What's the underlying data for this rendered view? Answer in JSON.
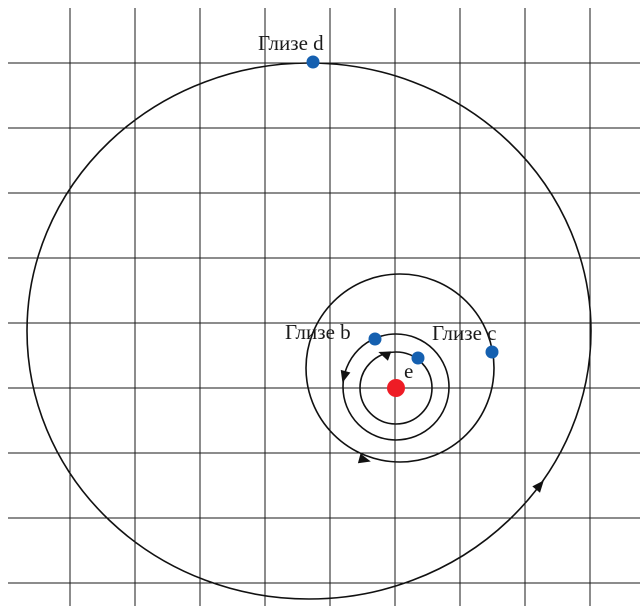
{
  "planets": [
    {
      "id": "d",
      "label": "Глизе d"
    },
    {
      "id": "b",
      "label": "Глизе b"
    },
    {
      "id": "c",
      "label": "Глизе c"
    },
    {
      "id": "e",
      "label": "e"
    }
  ],
  "colors": {
    "star": "#ee1c25",
    "planet": "#1560b0",
    "grid": "#1a1a1a",
    "orbit": "#111111"
  }
}
